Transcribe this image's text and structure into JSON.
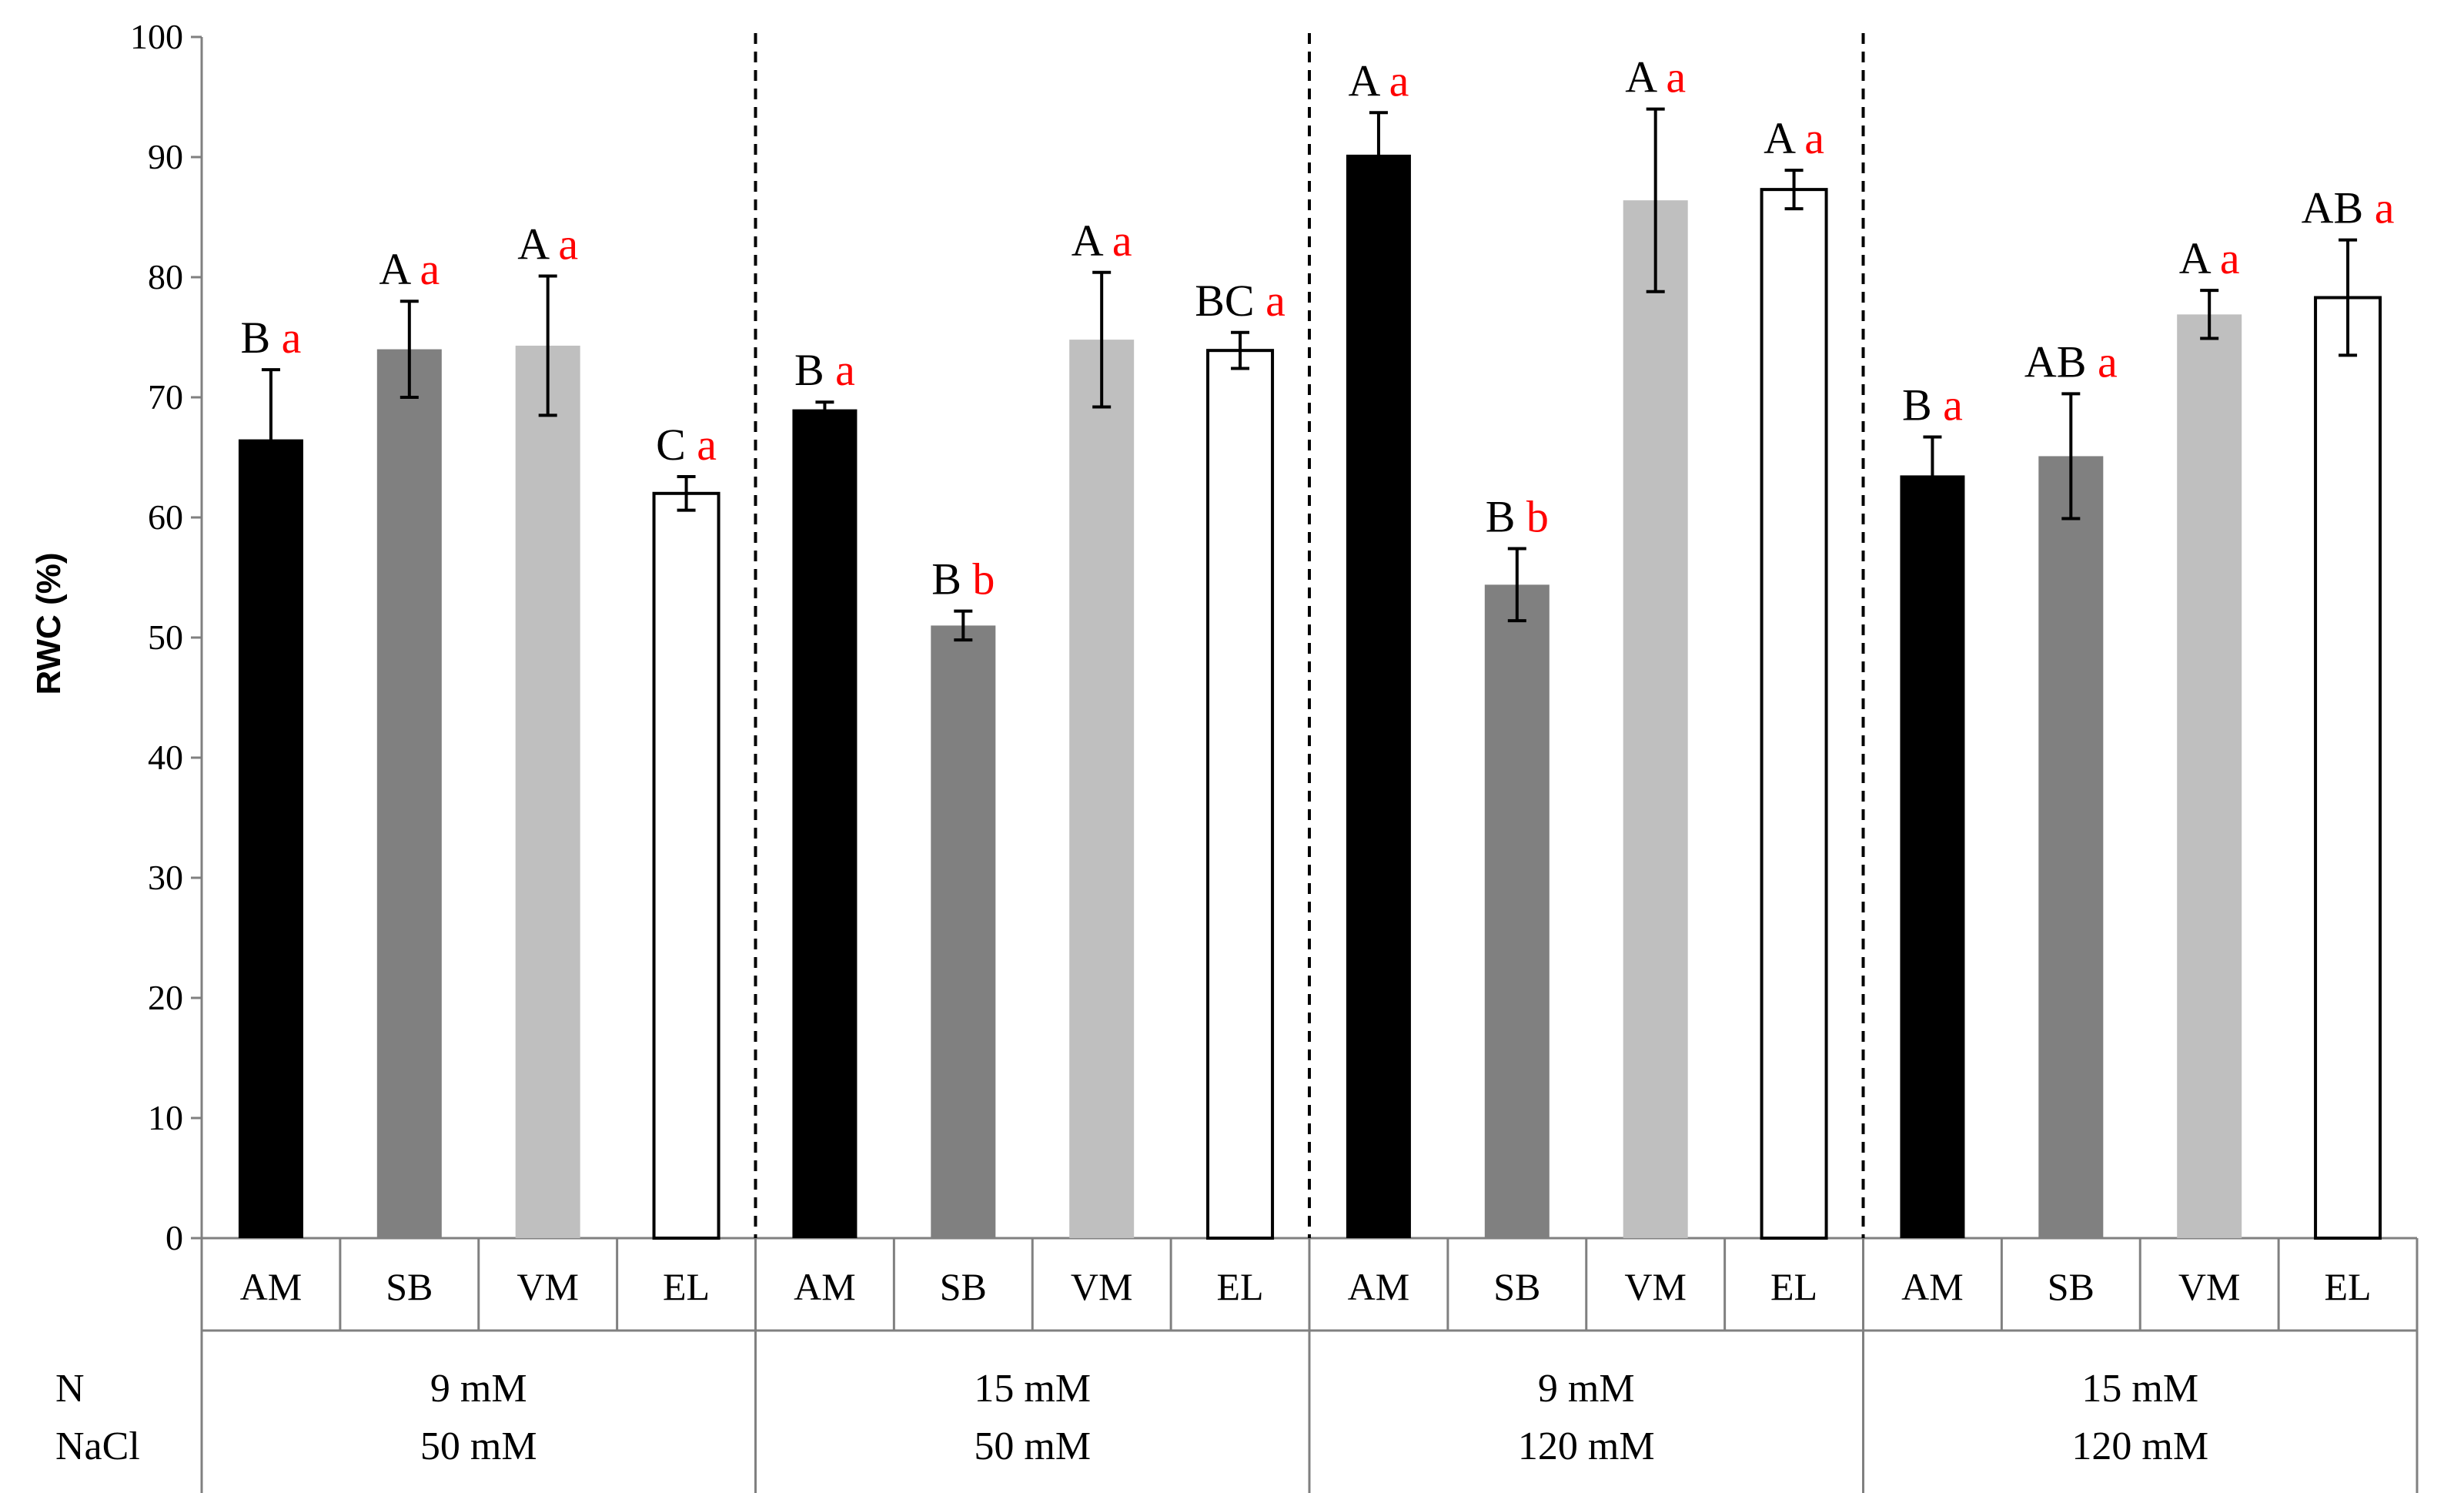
{
  "chart_data": {
    "type": "bar",
    "ylabel": "RWC (%)",
    "ylim": [
      0,
      100
    ],
    "yticks": [
      0,
      10,
      20,
      30,
      40,
      50,
      60,
      70,
      80,
      90,
      100
    ],
    "row_labels": {
      "n": "N",
      "nacl": "NaCl"
    },
    "categories": [
      "AM",
      "SB",
      "VM",
      "EL"
    ],
    "colors": {
      "AM": "#000000",
      "SB": "#808080",
      "VM": "#bfbfbf",
      "EL": "#ffffff"
    },
    "letter_colors": {
      "upper": "#000000",
      "lower": "#ff0000"
    },
    "groups": [
      {
        "n": "9 mM",
        "nacl": "50 mM",
        "bars": [
          {
            "cat": "AM",
            "value": 66.5,
            "error": 5.8,
            "upper": "B",
            "lower": "a"
          },
          {
            "cat": "SB",
            "value": 74.0,
            "error": 4.0,
            "upper": "A",
            "lower": "a"
          },
          {
            "cat": "VM",
            "value": 74.3,
            "error": 5.8,
            "upper": "A",
            "lower": "a"
          },
          {
            "cat": "EL",
            "value": 62.0,
            "error": 1.4,
            "upper": "C",
            "lower": "a"
          }
        ]
      },
      {
        "n": "15 mM",
        "nacl": "50 mM",
        "bars": [
          {
            "cat": "AM",
            "value": 69.0,
            "error": 0.6,
            "upper": "B",
            "lower": "a"
          },
          {
            "cat": "SB",
            "value": 51.0,
            "error": 1.2,
            "upper": "B",
            "lower": "b"
          },
          {
            "cat": "VM",
            "value": 74.8,
            "error": 5.6,
            "upper": "A",
            "lower": "a"
          },
          {
            "cat": "EL",
            "value": 73.9,
            "error": 1.5,
            "upper": "BC",
            "lower": "a"
          }
        ]
      },
      {
        "n": "9 mM",
        "nacl": "120 mM",
        "bars": [
          {
            "cat": "AM",
            "value": 90.2,
            "error": 3.5,
            "upper": "A",
            "lower": "a"
          },
          {
            "cat": "SB",
            "value": 54.4,
            "error": 3.0,
            "upper": "B",
            "lower": "b"
          },
          {
            "cat": "VM",
            "value": 86.4,
            "error": 7.6,
            "upper": "A",
            "lower": "a"
          },
          {
            "cat": "EL",
            "value": 87.3,
            "error": 1.6,
            "upper": "A",
            "lower": "a"
          }
        ]
      },
      {
        "n": "15 mM",
        "nacl": "120 mM",
        "bars": [
          {
            "cat": "AM",
            "value": 63.5,
            "error": 3.2,
            "upper": "B",
            "lower": "a"
          },
          {
            "cat": "SB",
            "value": 65.1,
            "error": 5.2,
            "upper": "AB",
            "lower": "a"
          },
          {
            "cat": "VM",
            "value": 76.9,
            "error": 2.0,
            "upper": "A",
            "lower": "a"
          },
          {
            "cat": "EL",
            "value": 78.3,
            "error": 4.8,
            "upper": "AB",
            "lower": "a"
          }
        ]
      }
    ]
  }
}
